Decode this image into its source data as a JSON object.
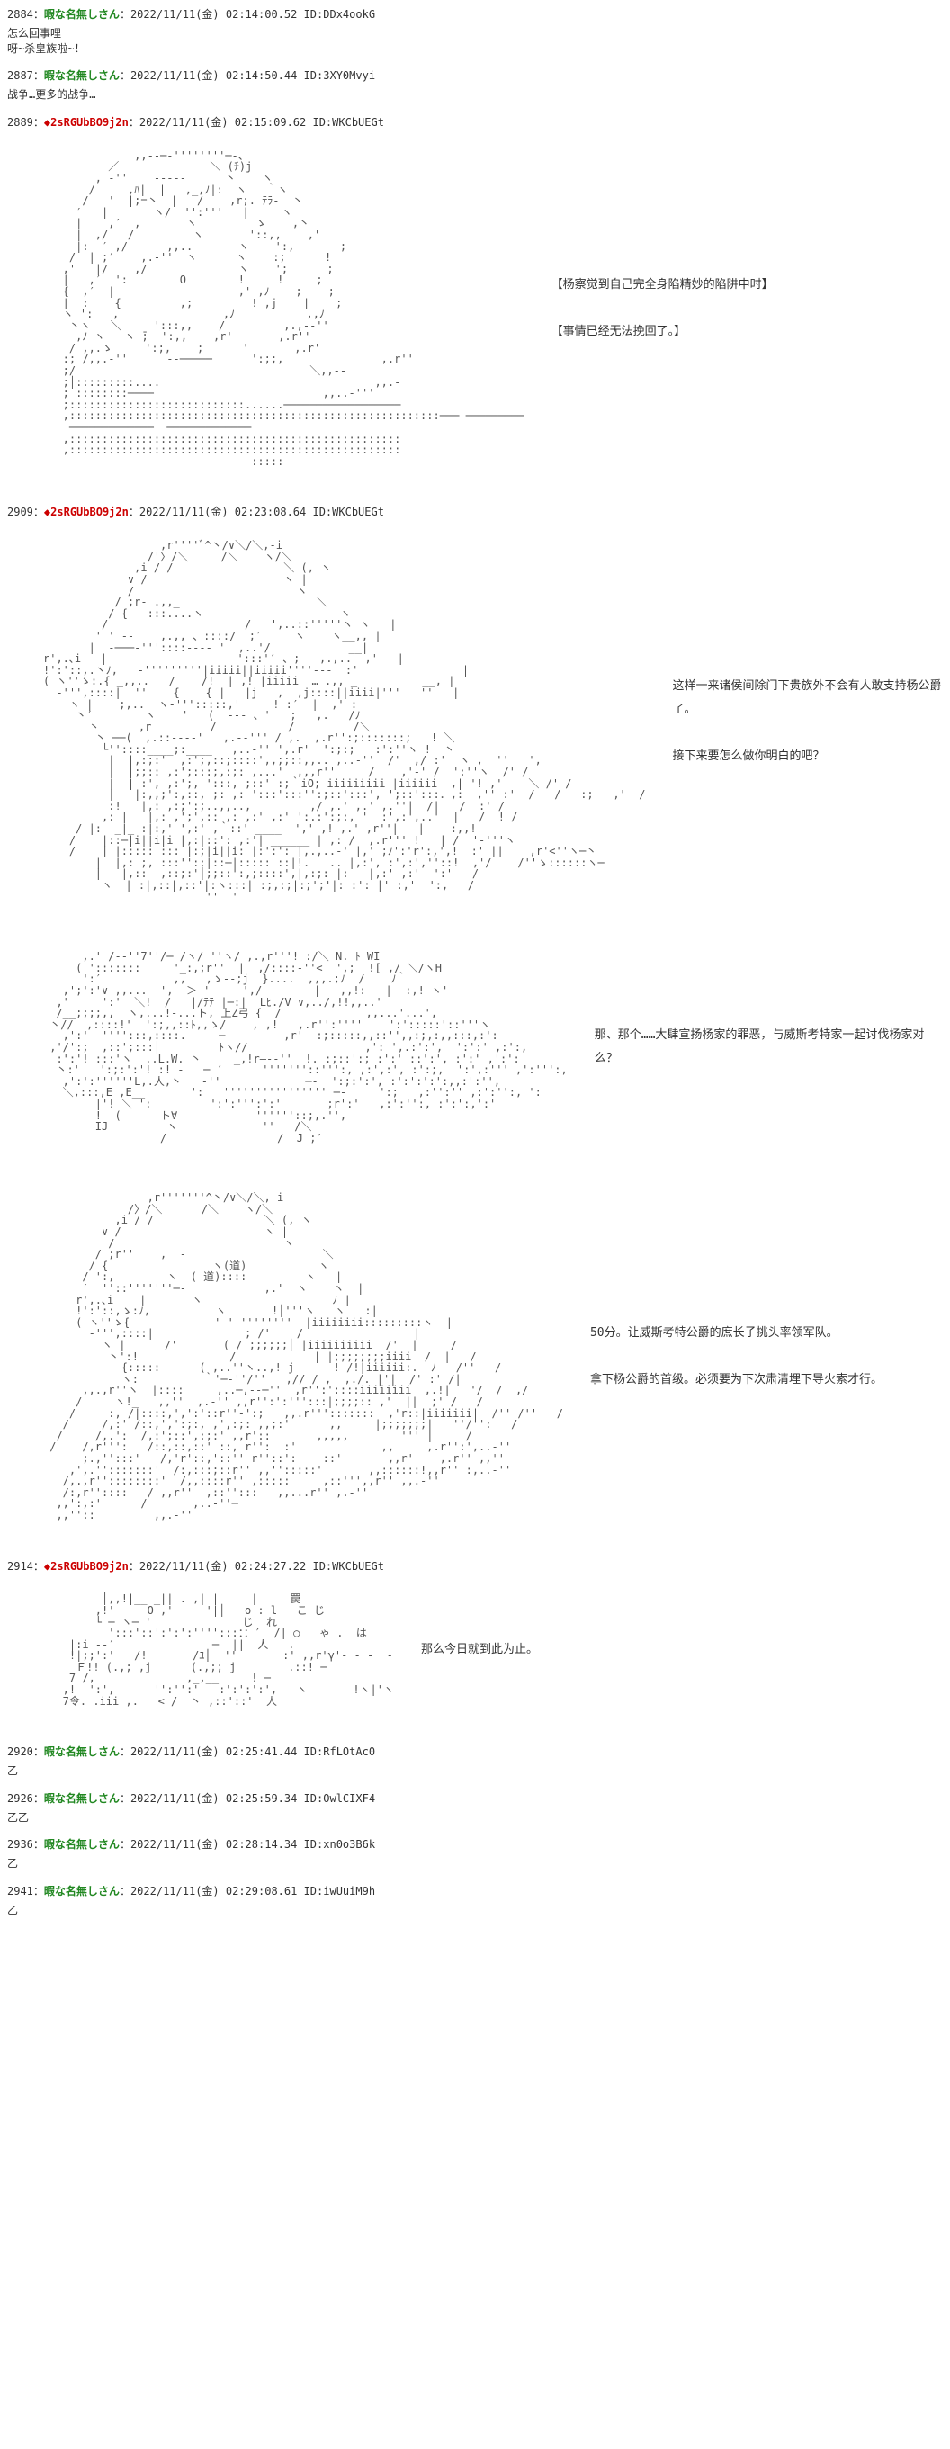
{
  "colors": {
    "name": "#228822",
    "trip": "#cc0000",
    "text": "#333333",
    "bg": "#ffffff"
  },
  "posts": [
    {
      "num": "2884",
      "name": "暇な名無しさん",
      "trip": "",
      "date": "2022/11/11(金) 02:14:00.52",
      "id": "ID:DDx4ookG",
      "body": "怎么回事哩\n呀~杀皇族啦~！",
      "aa": ""
    },
    {
      "num": "2887",
      "name": "暇な名無しさん",
      "trip": "",
      "date": "2022/11/11(金) 02:14:50.44",
      "id": "ID:3XY0Mvyi",
      "body": "战争…更多的战争…",
      "aa": ""
    },
    {
      "num": "2889",
      "name": "",
      "trip": "◆2sRGUbBO9j2n",
      "date": "2022/11/11(金) 02:15:09.62",
      "id": "ID:WKCbUEGt",
      "body": "",
      "aa_art": "              ,,--─-''''''''─-、\n          ／              ＼ (ﾁ)j\n        , -''    -‐‐-‐      丶    ヽ\n       /     ,ﾊ|  |   ,_,ﾉ|:  ヽ   ｀ヽ\n      /   '  |;=丶  |   /    ,r;. ﾃﾗ-  丶\n     ′   |       ヽ/  '':'''   |     ヽ\n     |    ,′  ,       ヽ         ゝ    ,丶\n     |  ,/   /         ヽ       '::,,    ,'\n     |:  ′ ,/      ,,..       ヽ    ':,       ;\n    /  | ;′    ,.-''  ヽ      ヽ    :;      !\n   ,'   |/    ,/              ヽ    ';      ;\n   |   ,′  ':        O        !     !     ;\n   {  ,′  |                   ,' ,ﾉ    ;    ;\n   |  :    {         ,;         ! ,j    |    ;\n   ヽ ':   ,                ,ﾉ           ,,ﾉ\n    丶ヽ   ＼     ':::,,    /         ,.,-‐''\n     ,ﾉ ヽ   ヽ ̄;  ':,,    ,r'       ,.r''\n    / ,,.ゝ     ':;,__  ;      '       ,.r'\n   :; /,,.-''      --─────      ':;;,               ,.r''\n   ;/                                    ＼,,-‐\n   ;│:::::::::....                                 ,,.-\n   ; ::::::::────                          ,,..-'''\n   ;:::::::::::::::::::::::::::......──────────────────\n   ,:::::::::::::::::::::::::::::::::::::::::::::::::::::::::─── ─────────\n    ─────────────  ─────────────\n   ,:::::::::::::::::::::::::::::::::::::::::::::::::::\n   ,:::::::::::::::::::::::::::::::::::::::::::::::::::\n                                :::::",
      "aa_text": "【杨察觉到自己完全身陷精妙的陷阱中时】\n\n【事情已经无法挽回了。】"
    },
    {
      "num": "2909",
      "name": "",
      "trip": "◆2sRGUbBO9j2n",
      "date": "2022/11/11(金) 02:23:08.64",
      "id": "ID:WKCbUEGt",
      "body": "",
      "aa_art": "                  ,r''''ﾞ^丶/∨＼/＼,-i\n                /'〉/＼     /＼    ヽ/＼\n              ,i / /                 ＼ (, ヽ\n             ∨ /                     ヽ |\n             /                         ヽ\n           / ;r‐ .,,_                     ＼\n          / {   :::....ヽ                     ヽ\n         /                     /   ',..::'''''ヽ ヽ   |\n        ' ' ‐-    ,.,, 、::::/  ;′     ヽ    ヽ__,, |\n       |  -───-'''::::---- '  ,..'/            __| \nr',.､i   |                    ':::'′ 、;‐‐‐,.,..- ,'   |\n!':'::,.丶ﾉ,   ‐'''''''''|iiiii||iiiii''''‐‐-  :'                |\n( ヽ''ゝ:.{ _,,..   /    /!  | ,! |iiiii  … .,, _          __, |\n  ‐''',::::|  ''    {    { |   |j   ,  ,j::::||iiii|'''   ''   |\n    ヽ |    ;,..  ヽ-''':::::,'     ! :′  |  ,' :\n     丶′        ヽ    '   (  ‐-- 、'   ;   ,.   /ﾉ\n       丶      ,r         /           /         /＼\n        丶 ──(  ,.::---‐'   ,.-‐''' / ,.  ,.r'':;:::::::;   ! ＼\n         └''::::____;:____   ,..‐'' ',.r'  ':;:;   :':''ヽ !  丶\n          |  |,:;:'  ,:';,::;::::',,;;::,,.. ,..-''  /'  ,/ :'  ヽ ,  ''   ',\n          |  |;;:: ,:';:::;,:;: ,...'  ,,,r''     /    ,'‐' /  ':''ヽ  /' /\n          |  | :', ,:';, ':::, ;::' :;｀iO; iiiiiiiii |iiiiii  ,| '! ,'    ＼ /' /\n          |   |:,,;':,::, ;: ,: ':::':::'':;::':::', ';::':::．,:  ,'' :'  /   /   :;   ,'  /\n          :!   |,: ,:;':;..,,..,  _____  ,/ ,.' ,.' ,.''|  /|   /  :' /\n         ,: |   |,: ,';',:: ,: ,:' ,:' ':.:':;:, '  :',:',..'  |   /  ! /\n     / |:  _|_ :|:,' ',:' ,｀::' ____  ',' ,! ,.' ,r''|   |    :,,!\n    /    |::─|i||i|i |,:|::': ,:'| ______ | ,: /  ,.r''' !   | /  '-'''ヽ\n    /    | |:::::|::: |:;|i||i: |:':': |,.,..-' |,' ;ﾉ':'r':,',!  :' ||    ,r'<''ヽ─丶\n        |  |,: ;,|:::''::|::─|::::: ::|!.   .. |,:', :',:',''::!  ,'/    /''ゝ::::::ヽ─\n        |   |,:: |,::;:'│;;::':,;::::',|,:;: |:   |,:' ,:'  ':'   /  \n         ヽ  | :|,::|,::'|:ヽ:::| :;,:;|:;';'|: :': |' :,'  ':,   /       \n                         ''  '\n",
      "aa_text": "这样一来诸侯间除门下贵族外不会有人敢支持杨公爵了。\n\n接下来要怎么做你明白的吧？"
    },
    {
      "num": "",
      "name": "",
      "trip": "",
      "date": "",
      "id": "",
      "body": "",
      "aa_art": "      ,.' /--''7''/─ /ヽ/ ''ヽ/ ,.,r'''! :/＼ N. ﾄ WI\n     ( ':::::::     '_:,;r''  |  ,/::::-''<  ',;  ![ ,/ ＼/ヽH\n      ':′           ,,   ,ゝ-‐;j  }....  ,,,.;ﾉ  /    ﾉ｀\n   ,';':'∨ ,,...  ',  ＞ '     ',/        |   ,,!:   |  :,! ヽ'\n  ,'     ':'  ＼!  /   |/ﾃﾃ |─:|  Lﾋ./V ∨,../,!!,,..'\n  /__;;;;,,  ヽ,...!-...ト, 上Z弓 {  /             ,,...'...',\n 丶//  ,::::!'  ':;,,::ﾄ,,ゝ/    , ,!   ,.r'':''''    ':':::::'::'''ヽ\n   ,':'  '''':::,::::.     ─         ,r'  :;:::::,,::'',,:;,:,,:::,:':\n ,'/':;  ,::';:::│         ﾄヽ//                  ,': ',.:':',  ':':' ,:':,\n  :':'! :::'ヽ  ..L.W. 丶     _,!r―--''  !. :;::':; :':' ::':', :':' ,':':\n  丶:'   ':;:':'! :! -   ─ ′      '''''''::''':, ,:',:', :':;,  ':',:''' ,':''':,\n   ,':':''''''L,.人,丶   ‐''             ─-  ':;:':', :':':':':,,:':'',\n   ＼,:::,E ,E__       ':   '''''''''''''''' ─‐     ':;   ,:'':'' ,:':'':, ':\n        |'! ＼ ':         ':':''':':'       ;r':'   ,:':'':, :':':,':'\n        !  (      ト∀            ''''''::;,.'',\n        IJ         ヽ             ''   /＼\n                 |/                 /  J ;′",
      "aa_text": "那、那个……大肆宣扬杨家的罪恶，与威斯考特家一起讨伐杨家对么？"
    },
    {
      "num": "",
      "name": "",
      "trip": "",
      "date": "",
      "id": "",
      "body": "",
      "aa_art": "                ,r'''''''^丶/∨＼/＼,-i\n             /〉/＼      /＼    ヽ/＼\n           ,i / /                 ＼ (, ヽ\n         ∨ /                      ヽ |\n          /                          ヽ\n        / ;r''    ,  ‐                     ＼\n       / {                ヽ(道)           ヽ\n      / ':,        ヽ  ( 道)::::         ヽ   |\n      ′  ''::'''''''─‐            ,.'  ヽ    ヽ  |\n     r',.､i    |       ヽ                    ﾉ |\n     !':'::,ゝ:ﾉ,          ヽ       !│'''ヽ   ヽ   :|\n     ( ヽ''ゝ{             ' ' ''''''''  |iiiiiiii:::::::::ヽ  |\n       ‐''',::::|              ; /'    /                 |\n         ヽ |      /'       ( / ;;;;;;│ |iiiiiiiiii  /'  |     /\n          丶':!              /            | |;;;;;;;;iiii  /  |   /\n            {:::::      ( ,..''ヽ..,! j      ! /!|iiiiii:.  ﾉ   /''   /\n            ヽ:          ｀'─‐''/''   ,// / ,  ,./. |'|  /' :' /|\n      ,,.,r''ヽ  |::::     ,..─,-‐─''  ,r'':'::::iiiiiiii  ,.!|   '/  /  ,/\n     /     ヽ!_   ,,''  ,.-'' ,,r'':':''':::|;;;;:: ,'  ||  ;' /   /\n    /     :, /|::::,',':'::r''-':;   ,,.r''':::::::  ,'r::|iiiiiii|  /'' /''   /\n   /     /,:' /::,',':;:, ,',:;: ,,;:'      ,,     |;;;;;;;|   ''/'':   /\n  /     /,.':  /,:';::',:;:' ,,r'::       ,,,,,        ''' |     /\n /    /,r''':   /::,::,::' ::, r'':  :'             ,,     ,.r'':',..-''\n      ;.,'':::'   /,'r'::,'::'' r''::':    ::'       ,,r'    ,.r'' ,,''\n    ,',.'':::::::'  /:,:::;::r'' ,,'':::::'       ,,::::::!,,r'' :,..-''\n   /,.,r''::::::::'  /,,::::r'' ,:::::     ,::''',,r'' ,,.-''\n   /:,r''::::   / ,,r''  ,::'':::   ,,...r'' ,.-''\n  ,,':,:'      /       ,..-''─\n  ,,''::         ,,.-''",
      "aa_text": "50分。让威斯考特公爵的庶长子挑头率领军队。\n\n拿下杨公爵的首级。必须要为下次肃清埋下导火索才行。"
    },
    {
      "num": "2914",
      "name": "",
      "trip": "◆2sRGUbBO9j2n",
      "date": "2022/11/11(金) 02:24:27.22",
      "id": "ID:WKCbUEGt",
      "body": "",
      "aa_art": "         │,,!|__ _|| . ,| |     |     罠\n        ,!'     O ,'     '|│   o : l   こ じ\n        └ ─ ヽ─ '              じ  れ\n          ':::'::':':':'''':::：：′  /| ○   ゃ .  は\n    |:i ‐‐′               ─  ||  人   .\n    !|;;':'   /!       /ﾕ│  ''       :' ,,r'γ'- - -  -\n     Ｆ!! (.,; ,j      (.,;; j        .::! ─\n    7 /,              ,_,__     ! ─\n   ,!  ':',      '':'':'   :':':':',   ヽ       !ヽ|'ヽ\n   7令. .iii ,.   < /  丶 ,::'::'  人",
      "aa_text": "那么今日就到此为止。"
    },
    {
      "num": "2920",
      "name": "暇な名無しさん",
      "trip": "",
      "date": "2022/11/11(金) 02:25:41.44",
      "id": "ID:RfLOtAc0",
      "body": "乙",
      "aa": ""
    },
    {
      "num": "2926",
      "name": "暇な名無しさん",
      "trip": "",
      "date": "2022/11/11(金) 02:25:59.34",
      "id": "ID:OwlCIXF4",
      "body": "乙乙",
      "aa": ""
    },
    {
      "num": "2936",
      "name": "暇な名無しさん",
      "trip": "",
      "date": "2022/11/11(金) 02:28:14.34",
      "id": "ID:xn0o3B6k",
      "body": "乙",
      "aa": ""
    },
    {
      "num": "2941",
      "name": "暇な名無しさん",
      "trip": "",
      "date": "2022/11/11(金) 02:29:08.61",
      "id": "ID:iwUuiM9h",
      "body": "乙",
      "aa": ""
    }
  ]
}
